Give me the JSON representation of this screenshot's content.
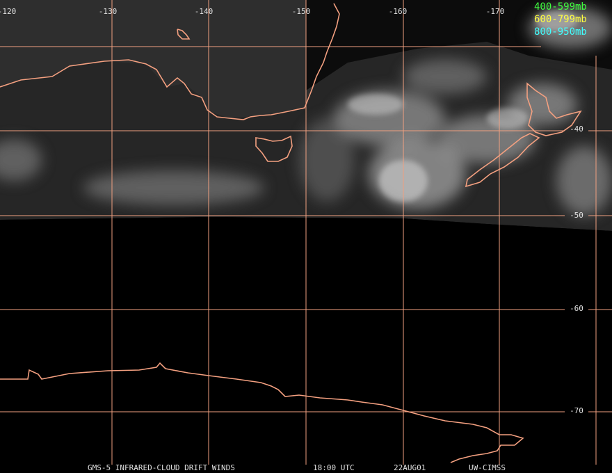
{
  "map": {
    "title": "GMS-5 INFRARED-CLOUD DRIFT WINDS",
    "time": "18:00 UTC",
    "date": "22AUG01",
    "source": "UW-CIMSS",
    "longitude_labels": [
      "-120",
      "-130",
      "-140",
      "-150",
      "-160",
      "-170"
    ],
    "latitude_labels": [
      "-40",
      "-50",
      "-60",
      "-70"
    ],
    "legend": [
      {
        "label": "400-599mb",
        "color": "#40ff40"
      },
      {
        "label": "600-799mb",
        "color": "#ffff40"
      },
      {
        "label": "800-950mb",
        "color": "#40ffff"
      }
    ]
  }
}
